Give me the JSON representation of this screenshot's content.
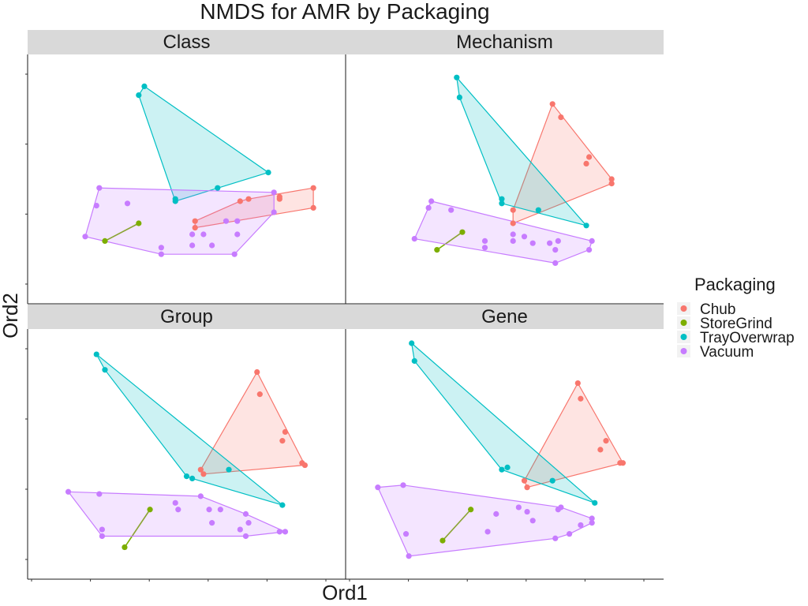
{
  "chart_data": {
    "type": "scatter",
    "title": "NMDS for AMR by Packaging",
    "xlabel": "Ord1",
    "ylabel": "Ord2",
    "x_tick_labels_shown": false,
    "y_tick_labels_shown": false,
    "grid": false,
    "legend": {
      "title": "Packaging",
      "placement": "right",
      "entries": [
        "Chub",
        "StoreGrind",
        "TrayOverwrap",
        "Vacuum"
      ]
    },
    "colors": {
      "Chub": "#F8766D",
      "StoreGrind": "#7CAE00",
      "TrayOverwrap": "#00BFC4",
      "Vacuum": "#C77CFF"
    },
    "panels": [
      {
        "name": "Class",
        "xlim": [
          0,
          100
        ],
        "ylim": [
          0,
          100
        ],
        "series": [
          {
            "name": "Chub",
            "points": [
              [
                53,
                28
              ],
              [
                53,
                31
              ],
              [
                69,
                40
              ],
              [
                72,
                41
              ],
              [
                83,
                41
              ],
              [
                83,
                42
              ],
              [
                95,
                37
              ],
              [
                95,
                46
              ]
            ]
          },
          {
            "name": "StoreGrind",
            "points": [
              [
                21,
                22
              ],
              [
                33,
                30
              ]
            ]
          },
          {
            "name": "TrayOverwrap",
            "points": [
              [
                33,
                88
              ],
              [
                35,
                92
              ],
              [
                46,
                40
              ],
              [
                46,
                41
              ],
              [
                61,
                46
              ],
              [
                79,
                53
              ]
            ]
          },
          {
            "name": "Vacuum",
            "points": [
              [
                14,
                24
              ],
              [
                18,
                38
              ],
              [
                19,
                46
              ],
              [
                29,
                39
              ],
              [
                41,
                19
              ],
              [
                41,
                16
              ],
              [
                52,
                20
              ],
              [
                52,
                25
              ],
              [
                56,
                25
              ],
              [
                59,
                20
              ],
              [
                64,
                31
              ],
              [
                68,
                31
              ],
              [
                68,
                25
              ],
              [
                67,
                16
              ],
              [
                81,
                35
              ],
              [
                81,
                44
              ]
            ]
          }
        ]
      },
      {
        "name": "Mechanism",
        "xlim": [
          0,
          100
        ],
        "ylim": [
          0,
          100
        ],
        "series": [
          {
            "name": "Chub",
            "points": [
              [
                53,
                30
              ],
              [
                53,
                36
              ],
              [
                67,
                84
              ],
              [
                70,
                78
              ],
              [
                79,
                57
              ],
              [
                80,
                60
              ],
              [
                88,
                48
              ],
              [
                88,
                50
              ]
            ]
          },
          {
            "name": "StoreGrind",
            "points": [
              [
                26,
                18
              ],
              [
                35,
                26
              ]
            ]
          },
          {
            "name": "TrayOverwrap",
            "points": [
              [
                33,
                96
              ],
              [
                34,
                87
              ],
              [
                49,
                39
              ],
              [
                49,
                41
              ],
              [
                62,
                36
              ],
              [
                79,
                29
              ]
            ]
          },
          {
            "name": "Vacuum",
            "points": [
              [
                18,
                23
              ],
              [
                23,
                37
              ],
              [
                24,
                40
              ],
              [
                31,
                36
              ],
              [
                43,
                22
              ],
              [
                43,
                19
              ],
              [
                53,
                25
              ],
              [
                53,
                22
              ],
              [
                57,
                24
              ],
              [
                60,
                21
              ],
              [
                66,
                21
              ],
              [
                69,
                22
              ],
              [
                68,
                18
              ],
              [
                68,
                12
              ],
              [
                80,
                18
              ],
              [
                81,
                22
              ]
            ]
          }
        ]
      },
      {
        "name": "Group",
        "xlim": [
          0,
          100
        ],
        "ylim": [
          0,
          100
        ],
        "series": [
          {
            "name": "Chub",
            "points": [
              [
                55,
                43
              ],
              [
                56,
                41
              ],
              [
                75,
                87
              ],
              [
                76,
                77
              ],
              [
                85,
                60
              ],
              [
                84,
                56
              ],
              [
                91,
                46
              ],
              [
                92,
                45
              ]
            ]
          },
          {
            "name": "StoreGrind",
            "points": [
              [
                28,
                8
              ],
              [
                37,
                25
              ]
            ]
          },
          {
            "name": "TrayOverwrap",
            "points": [
              [
                18,
                95
              ],
              [
                21,
                88
              ],
              [
                50,
                40
              ],
              [
                52,
                39
              ],
              [
                65,
                43
              ],
              [
                84,
                27
              ]
            ]
          },
          {
            "name": "Vacuum",
            "points": [
              [
                8,
                33
              ],
              [
                19,
                32
              ],
              [
                20,
                13
              ],
              [
                20,
                16
              ],
              [
                46,
                28
              ],
              [
                47,
                25
              ],
              [
                55,
                31
              ],
              [
                58,
                25
              ],
              [
                59,
                19
              ],
              [
                62,
                25
              ],
              [
                69,
                16
              ],
              [
                71,
                23
              ],
              [
                72,
                19
              ],
              [
                71,
                13
              ],
              [
                83,
                15
              ],
              [
                85,
                15
              ]
            ]
          }
        ]
      },
      {
        "name": "Gene",
        "xlim": [
          0,
          100
        ],
        "ylim": [
          0,
          100
        ],
        "series": [
          {
            "name": "Chub",
            "points": [
              [
                57,
                38
              ],
              [
                58,
                35
              ],
              [
                76,
                82
              ],
              [
                77,
                75
              ],
              [
                86,
                56
              ],
              [
                84,
                52
              ],
              [
                91,
                46
              ],
              [
                92,
                46
              ]
            ]
          },
          {
            "name": "StoreGrind",
            "points": [
              [
                28,
                11
              ],
              [
                38,
                25
              ]
            ]
          },
          {
            "name": "TrayOverwrap",
            "points": [
              [
                17,
                100
              ],
              [
                18,
                92
              ],
              [
                49,
                43
              ],
              [
                51,
                44
              ],
              [
                67,
                38
              ],
              [
                82,
                28
              ]
            ]
          },
          {
            "name": "Vacuum",
            "points": [
              [
                5,
                35
              ],
              [
                14,
                36
              ],
              [
                15,
                14
              ],
              [
                16,
                4
              ],
              [
                44,
                15
              ],
              [
                47,
                23
              ],
              [
                55,
                26
              ],
              [
                58,
                24
              ],
              [
                60,
                20
              ],
              [
                69,
                25
              ],
              [
                68,
                12
              ],
              [
                70,
                26
              ],
              [
                73,
                14
              ],
              [
                77,
                18
              ],
              [
                81,
                21
              ],
              [
                81,
                19
              ]
            ]
          }
        ]
      }
    ]
  }
}
